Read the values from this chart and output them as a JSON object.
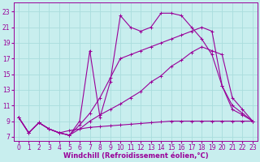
{
  "xlabel": "Windchill (Refroidissement éolien,°C)",
  "bg_color": "#c8eeee",
  "line_color": "#990099",
  "grid_color": "#aadddd",
  "xlim": [
    -0.5,
    23.5
  ],
  "ylim": [
    6.5,
    24.2
  ],
  "xticks": [
    0,
    1,
    2,
    3,
    4,
    5,
    6,
    7,
    8,
    9,
    10,
    11,
    12,
    13,
    14,
    15,
    16,
    17,
    18,
    19,
    20,
    21,
    22,
    23
  ],
  "yticks": [
    7,
    9,
    11,
    13,
    15,
    17,
    19,
    21,
    23
  ],
  "line1_x": [
    0,
    1,
    2,
    3,
    4,
    5,
    6,
    7,
    8,
    9,
    10,
    11,
    12,
    13,
    14,
    15,
    16,
    17,
    18,
    19,
    20,
    21,
    22,
    23
  ],
  "line1_y": [
    9.5,
    7.5,
    8.8,
    8.0,
    7.5,
    7.8,
    8.0,
    8.2,
    8.3,
    8.4,
    8.5,
    8.6,
    8.7,
    8.8,
    8.9,
    9.0,
    9.0,
    9.0,
    9.0,
    9.0,
    9.0,
    9.0,
    9.0,
    9.0
  ],
  "line2_x": [
    0,
    1,
    2,
    3,
    4,
    5,
    6,
    7,
    8,
    9,
    10,
    11,
    12,
    13,
    14,
    15,
    16,
    17,
    18,
    19,
    20,
    21,
    22,
    23
  ],
  "line2_y": [
    9.5,
    7.5,
    8.8,
    8.0,
    7.5,
    7.2,
    8.5,
    10.0,
    12.0,
    14.5,
    17.0,
    17.5,
    18.0,
    18.5,
    19.0,
    19.5,
    20.0,
    20.5,
    21.0,
    20.5,
    13.5,
    11.0,
    10.0,
    9.0
  ],
  "line3_x": [
    0,
    1,
    2,
    3,
    4,
    5,
    6,
    7,
    8,
    9,
    10,
    11,
    12,
    13,
    14,
    15,
    16,
    17,
    18,
    19,
    20,
    21,
    22,
    23
  ],
  "line3_y": [
    9.5,
    7.5,
    8.8,
    8.0,
    7.5,
    7.2,
    9.0,
    18.0,
    9.5,
    14.0,
    22.5,
    21.0,
    20.5,
    21.0,
    22.8,
    22.8,
    22.5,
    21.0,
    19.5,
    17.5,
    13.5,
    10.5,
    9.8,
    9.0
  ],
  "line4_x": [
    0,
    1,
    2,
    3,
    4,
    5,
    6,
    7,
    8,
    9,
    10,
    11,
    12,
    13,
    14,
    15,
    16,
    17,
    18,
    19,
    20,
    21,
    22,
    23
  ],
  "line4_y": [
    9.5,
    7.5,
    8.8,
    8.0,
    7.5,
    7.2,
    8.0,
    9.0,
    9.8,
    10.5,
    11.2,
    12.0,
    12.8,
    14.0,
    14.8,
    16.0,
    16.8,
    17.8,
    18.5,
    18.0,
    17.5,
    12.0,
    10.5,
    9.0
  ],
  "xlabel_fontsize": 6,
  "tick_fontsize": 5.5,
  "figsize": [
    3.2,
    2.0
  ],
  "dpi": 100
}
